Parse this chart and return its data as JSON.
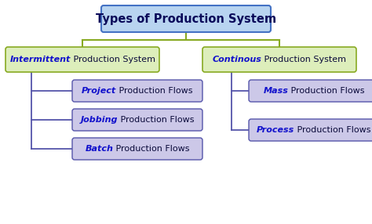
{
  "title": "Types of Production System",
  "title_box_color": "#b8d4f0",
  "title_box_edge": "#4472c4",
  "title_text_color": "#0a0a5a",
  "level2_box_color": "#ddeebb",
  "level2_box_edge": "#88aa22",
  "level2_hl_color": "#1111cc",
  "level2_text_color": "#0a0a3a",
  "level2_left_hl": "Intermittent",
  "level2_left_rest": " Production System",
  "level2_right_hl": "Continous",
  "level2_right_rest": " Production System",
  "level3_box_color": "#ccc8e8",
  "level3_box_edge": "#5555aa",
  "level3_hl_color": "#1111cc",
  "level3_text_color": "#0a0a3a",
  "left_children": [
    {
      "hl": "Project",
      "rest": " Production Flows"
    },
    {
      "hl": "Jobbing",
      "rest": " Production Flows"
    },
    {
      "hl": "Batch",
      "rest": " Production Flows"
    }
  ],
  "right_children": [
    {
      "hl": "Mass",
      "rest": " Production Flows"
    },
    {
      "hl": "Process",
      "rest": " Production Flows"
    }
  ],
  "connector_color_top": "#88aa22",
  "connector_color_branch": "#5555aa",
  "background_color": "#ffffff"
}
